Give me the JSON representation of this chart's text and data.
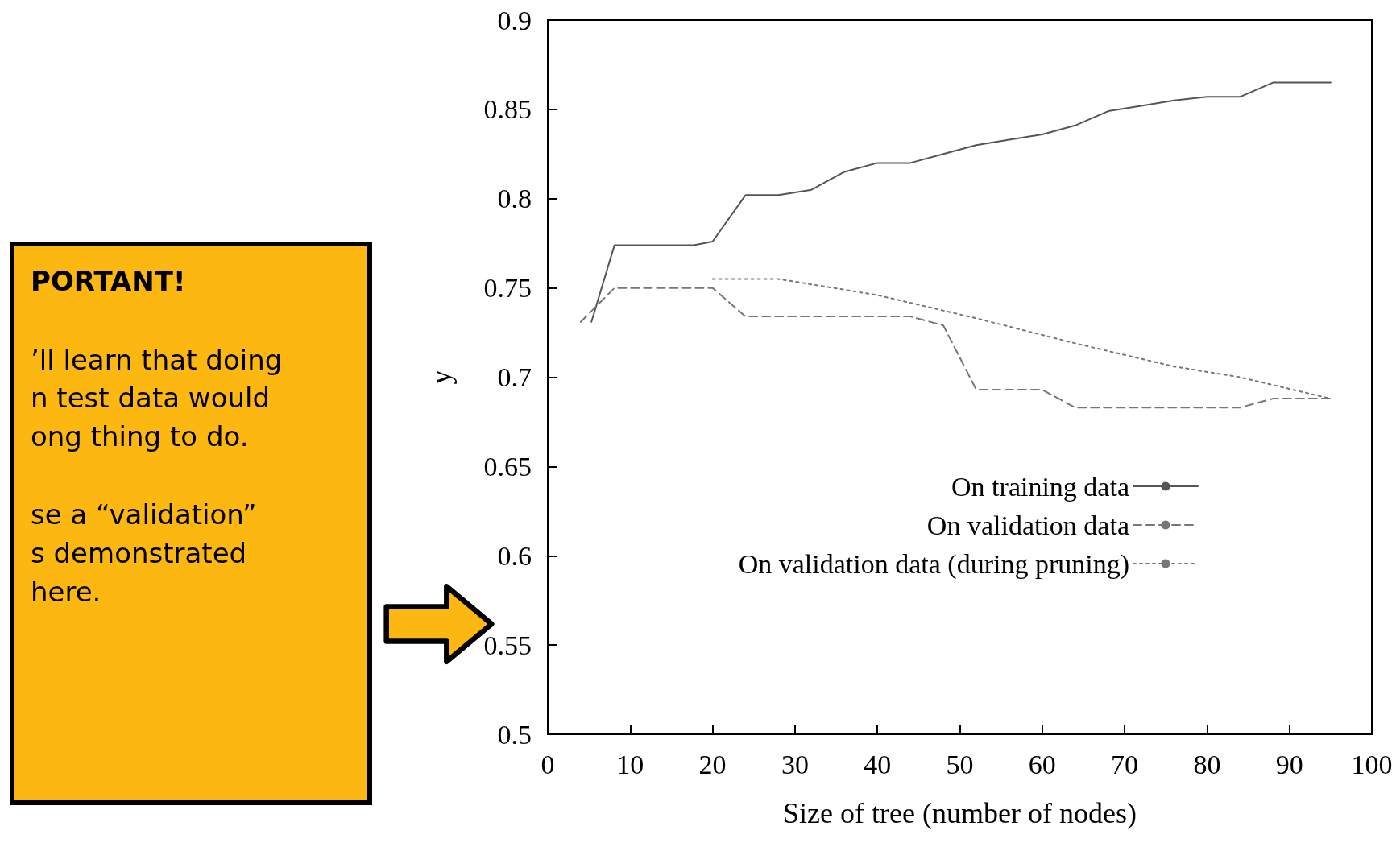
{
  "chart_data": {
    "type": "line",
    "xlabel": "Size of tree (number of nodes)",
    "ylabel": "y",
    "xlim": [
      0,
      100
    ],
    "xticks": [
      0,
      10,
      20,
      30,
      40,
      50,
      60,
      70,
      80,
      90,
      100
    ],
    "ylim": [
      0.5,
      0.9
    ],
    "yticks": [
      0.5,
      0.55,
      0.6,
      0.65,
      0.7,
      0.75,
      0.8,
      0.85,
      0.9
    ],
    "grid": false,
    "legend": "bottom right",
    "marker": "none",
    "series": [
      {
        "name": "On training data",
        "color": "#555555",
        "line_style": "solid",
        "x": [
          5.3,
          8.1,
          17.7,
          20,
          24,
          28,
          32,
          36,
          40,
          44,
          48,
          52,
          56,
          60,
          64,
          68,
          72,
          76,
          80,
          84,
          88,
          95
        ],
        "values": [
          0.731,
          0.774,
          0.774,
          0.776,
          0.802,
          0.802,
          0.805,
          0.815,
          0.82,
          0.82,
          0.825,
          0.83,
          0.833,
          0.836,
          0.841,
          0.849,
          0.852,
          0.855,
          0.857,
          0.857,
          0.865,
          0.865
        ]
      },
      {
        "name": "On validation data",
        "color": "#777777",
        "line_style": "dashed",
        "x": [
          4,
          8.1,
          20,
          24,
          44,
          48,
          52,
          60,
          64,
          84,
          88,
          95
        ],
        "values": [
          0.731,
          0.75,
          0.75,
          0.734,
          0.734,
          0.729,
          0.693,
          0.693,
          0.683,
          0.683,
          0.688,
          0.688
        ]
      },
      {
        "name": "On validation data (during pruning)",
        "color": "#777777",
        "line_style": "dotted",
        "x": [
          20,
          28,
          40,
          52,
          64,
          76,
          84,
          95
        ],
        "values": [
          0.755,
          0.755,
          0.746,
          0.733,
          0.719,
          0.706,
          0.7,
          0.688
        ]
      }
    ],
    "annotations": [
      "PORTANT!",
      "’ll learn that doing",
      "n test data would",
      "ong thing to do.",
      "se a “validation”",
      "s demonstrated",
      "here."
    ]
  }
}
